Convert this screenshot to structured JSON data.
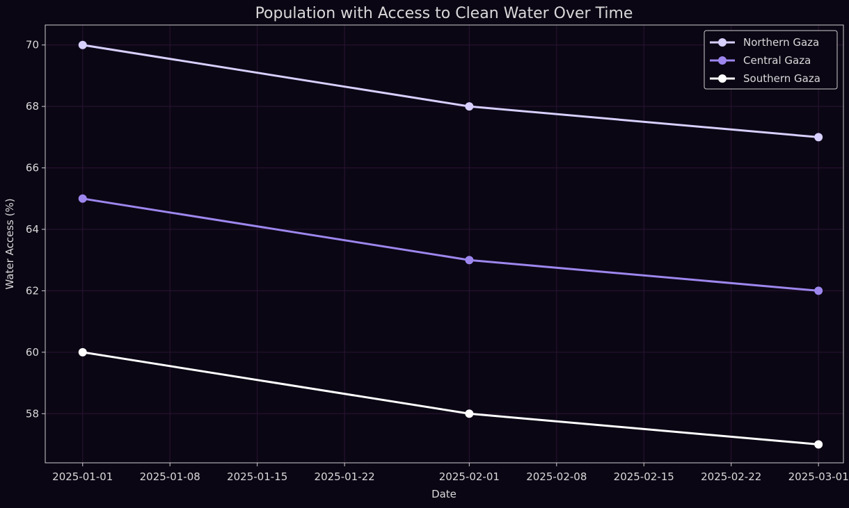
{
  "chart_data": {
    "type": "line",
    "title": "Population with Access to Clean Water Over Time",
    "xlabel": "Date",
    "ylabel": "Water Access (%)",
    "x": [
      "2025-01-01",
      "2025-02-01",
      "2025-03-01"
    ],
    "xlim": [
      "2024-12-29",
      "2025-03-03"
    ],
    "ylim": [
      56.4,
      70.65
    ],
    "x_ticks": [
      "2025-01-01",
      "2025-01-08",
      "2025-01-15",
      "2025-01-22",
      "2025-02-01",
      "2025-02-08",
      "2025-02-15",
      "2025-02-22",
      "2025-03-01"
    ],
    "y_ticks": [
      58,
      60,
      62,
      64,
      66,
      68,
      70
    ],
    "grid": true,
    "legend_position": "top-right",
    "series": [
      {
        "name": "Northern Gaza",
        "values": [
          70,
          68,
          67
        ],
        "color": "#d8d0ff"
      },
      {
        "name": "Central Gaza",
        "values": [
          65,
          63,
          62
        ],
        "color": "#9d87ee"
      },
      {
        "name": "Southern Gaza",
        "values": [
          60,
          58,
          57
        ],
        "color": "#ffffff"
      }
    ]
  },
  "colors": {
    "background": "#0b0614",
    "axes": "#cfcfcf",
    "text": "#d9d9d9",
    "grid": "#2a1533"
  }
}
